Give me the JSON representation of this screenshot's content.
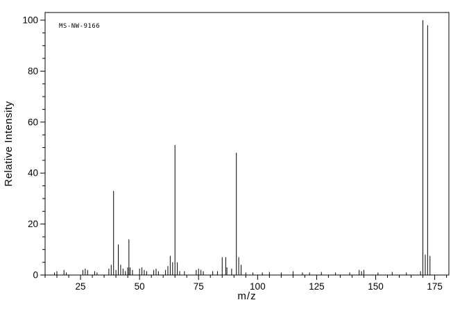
{
  "chart_data": {
    "type": "bar",
    "subtype": "mass-spectrum",
    "annotation": "MS-NW-9166",
    "xlabel": "m/z",
    "ylabel": "Relative Intensity",
    "xlim": [
      10,
      181
    ],
    "ylim": [
      0,
      103
    ],
    "x_major_ticks": [
      25,
      50,
      75,
      100,
      125,
      150,
      175
    ],
    "x_minor_step": 5,
    "y_major_ticks": [
      0,
      20,
      40,
      60,
      80,
      100
    ],
    "y_minor_step": 5,
    "grid": false,
    "legend": false,
    "axis_color": "#000000",
    "peak_color": "#000000",
    "background_color": "#ffffff",
    "peaks": [
      [
        14,
        1
      ],
      [
        15,
        1.5
      ],
      [
        18,
        2
      ],
      [
        19,
        1
      ],
      [
        26,
        2
      ],
      [
        27,
        2.5
      ],
      [
        28,
        2
      ],
      [
        31,
        1.5
      ],
      [
        32,
        1
      ],
      [
        37,
        2.5
      ],
      [
        38,
        4
      ],
      [
        39,
        33
      ],
      [
        40,
        2
      ],
      [
        41,
        12
      ],
      [
        42,
        4
      ],
      [
        43,
        2.5
      ],
      [
        44,
        1.5
      ],
      [
        45,
        3
      ],
      [
        45.5,
        14
      ],
      [
        46,
        3
      ],
      [
        47,
        2
      ],
      [
        50,
        2.5
      ],
      [
        51,
        3
      ],
      [
        52,
        2
      ],
      [
        53,
        1.5
      ],
      [
        56,
        2
      ],
      [
        57,
        2.5
      ],
      [
        58,
        1.5
      ],
      [
        61,
        2
      ],
      [
        62,
        3.5
      ],
      [
        63,
        7.5
      ],
      [
        64,
        5
      ],
      [
        65,
        51
      ],
      [
        66,
        5
      ],
      [
        67,
        1.5
      ],
      [
        69,
        1.5
      ],
      [
        74,
        2
      ],
      [
        75,
        2.5
      ],
      [
        76,
        2
      ],
      [
        77,
        1.5
      ],
      [
        81,
        1.5
      ],
      [
        83,
        1.5
      ],
      [
        85,
        7
      ],
      [
        86.5,
        7
      ],
      [
        87,
        3
      ],
      [
        89,
        2.5
      ],
      [
        91,
        48
      ],
      [
        92,
        7
      ],
      [
        93,
        4
      ],
      [
        95,
        1
      ],
      [
        98,
        1
      ],
      [
        102,
        1
      ],
      [
        105,
        1.2
      ],
      [
        110,
        1
      ],
      [
        115,
        1.5
      ],
      [
        119,
        1
      ],
      [
        122,
        1
      ],
      [
        127,
        1.2
      ],
      [
        133,
        1
      ],
      [
        139,
        1
      ],
      [
        143,
        2
      ],
      [
        144,
        1.5
      ],
      [
        145,
        2
      ],
      [
        151,
        1
      ],
      [
        157,
        1.2
      ],
      [
        163,
        1
      ],
      [
        169,
        1.5
      ],
      [
        170,
        100
      ],
      [
        171,
        8
      ],
      [
        172,
        98
      ],
      [
        173,
        7.5
      ]
    ]
  }
}
